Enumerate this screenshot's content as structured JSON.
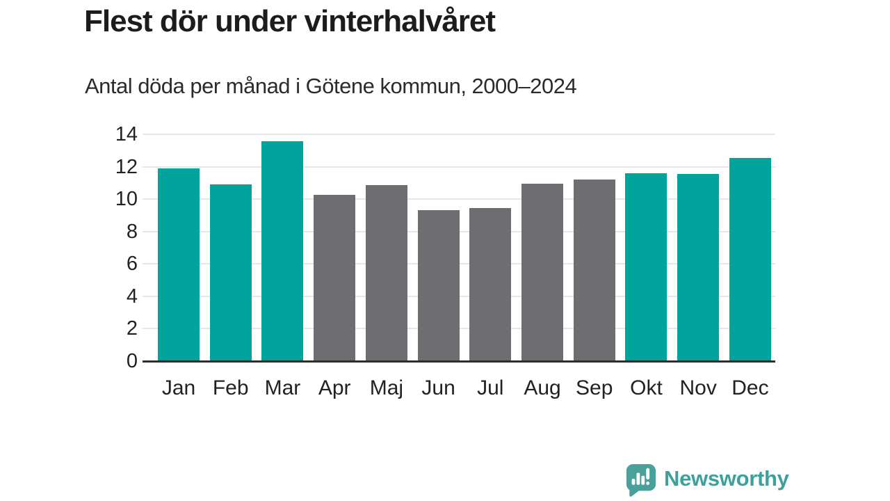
{
  "chart_data": {
    "type": "bar",
    "title": "Flest dör under vinterhalvåret",
    "subtitle": "Antal döda per månad i Götene kommun, 2000–2024",
    "categories": [
      "Jan",
      "Feb",
      "Mar",
      "Apr",
      "Maj",
      "Jun",
      "Jul",
      "Aug",
      "Sep",
      "Okt",
      "Nov",
      "Dec"
    ],
    "values": [
      11.9,
      10.9,
      13.55,
      10.25,
      10.85,
      9.3,
      9.45,
      10.95,
      11.2,
      11.6,
      11.55,
      12.55
    ],
    "highlighted": [
      true,
      true,
      true,
      false,
      false,
      false,
      false,
      false,
      false,
      true,
      true,
      true
    ],
    "xlabel": "",
    "ylabel": "",
    "ylim": [
      0,
      14
    ],
    "yticks": [
      0,
      2,
      4,
      6,
      8,
      10,
      12,
      14
    ],
    "grid": true,
    "legend": "none",
    "colors": {
      "highlight": "#00a49c",
      "default": "#6e6e72",
      "gridline": "#e7e7e7",
      "axis": "#2e2e2c",
      "text": "#222220"
    }
  },
  "branding": {
    "logo_text": "Newsworthy",
    "logo_text_color": "#3da19b",
    "logo_mark_color": "#4aa19c",
    "logo_mark_icon": "speech-bubble-bar-chart-exclamation"
  }
}
